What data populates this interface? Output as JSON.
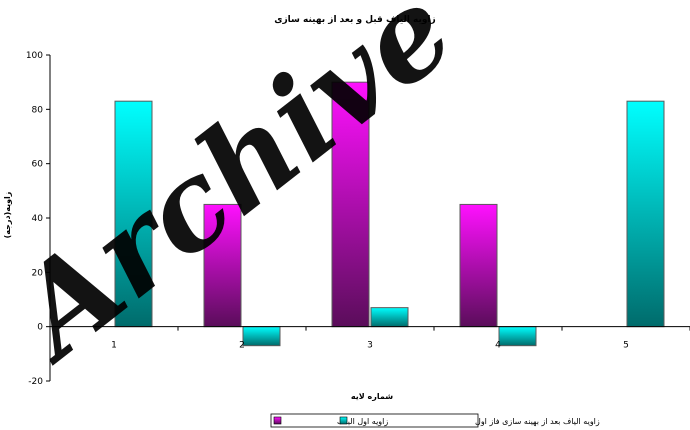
{
  "chart_data": {
    "type": "bar",
    "title": "زاویه الیاف قبل و بعد از بهینه سازی",
    "xlabel": "شماره لایه",
    "ylabel": "زاویه(درجه)",
    "categories": [
      "1",
      "2",
      "3",
      "4",
      "5"
    ],
    "ylim": [
      -20,
      100
    ],
    "yticks": [
      -20,
      0,
      20,
      40,
      60,
      80,
      100
    ],
    "grid": false,
    "legend_position": "bottom",
    "series": [
      {
        "name": "زاویه اول الیاف",
        "values": [
          0,
          45,
          90,
          45,
          0
        ]
      },
      {
        "name": "زاویه الیاف بعد از بهینه سازی فاز اول",
        "values": [
          83,
          -7,
          7,
          -7,
          83
        ]
      }
    ],
    "watermark": "Archive",
    "colors": {
      "series1_top": "#ff10ff",
      "series1_bottom": "#5a0d5a",
      "series2_top": "#00ffff",
      "series2_bottom": "#006b6b",
      "axis": "#000000",
      "bar_border": "#5a5a5a"
    }
  }
}
